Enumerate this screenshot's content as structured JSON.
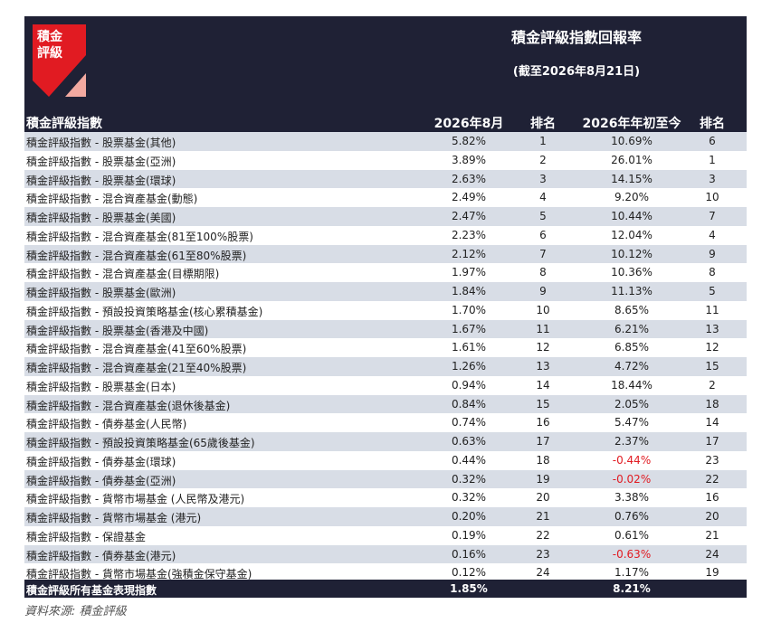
{
  "logo": {
    "line1": "積金",
    "line2": "評級"
  },
  "header": {
    "title": "積金評級指數回報率",
    "subtitle": "(截至2026年8月21日)"
  },
  "columns": {
    "name": "積金評級指數",
    "monthly": "2026年8月",
    "rank1": "排名",
    "ytd": "2026年年初至今",
    "rank2": "排名"
  },
  "colors": {
    "header_bg": "#1f2135",
    "logo_red": "#e11b22",
    "logo_pink": "#f2a9a0",
    "row_alt": "#d8dde6",
    "negative": "#e11b22"
  },
  "rows": [
    {
      "name": "積金評級指數 - 股票基金(其他)",
      "monthly": "5.82%",
      "rank1": "1",
      "ytd": "10.69%",
      "rank2": "6",
      "neg": false
    },
    {
      "name": "積金評級指數 - 股票基金(亞洲)",
      "monthly": "3.89%",
      "rank1": "2",
      "ytd": "26.01%",
      "rank2": "1",
      "neg": false
    },
    {
      "name": "積金評級指數 - 股票基金(環球)",
      "monthly": "2.63%",
      "rank1": "3",
      "ytd": "14.15%",
      "rank2": "3",
      "neg": false
    },
    {
      "name": "積金評級指數 - 混合資產基金(動態)",
      "monthly": "2.49%",
      "rank1": "4",
      "ytd": "9.20%",
      "rank2": "10",
      "neg": false
    },
    {
      "name": "積金評級指數 - 股票基金(美國)",
      "monthly": "2.47%",
      "rank1": "5",
      "ytd": "10.44%",
      "rank2": "7",
      "neg": false
    },
    {
      "name": "積金評級指數 - 混合資產基金(81至100%股票)",
      "monthly": "2.23%",
      "rank1": "6",
      "ytd": "12.04%",
      "rank2": "4",
      "neg": false
    },
    {
      "name": "積金評級指數 - 混合資產基金(61至80%股票)",
      "monthly": "2.12%",
      "rank1": "7",
      "ytd": "10.12%",
      "rank2": "9",
      "neg": false
    },
    {
      "name": "積金評級指數 - 混合資產基金(目標期限)",
      "monthly": "1.97%",
      "rank1": "8",
      "ytd": "10.36%",
      "rank2": "8",
      "neg": false
    },
    {
      "name": "積金評級指數 - 股票基金(歐洲)",
      "monthly": "1.84%",
      "rank1": "9",
      "ytd": "11.13%",
      "rank2": "5",
      "neg": false
    },
    {
      "name": "積金評級指數 - 預設投資策略基金(核心累積基金)",
      "monthly": "1.70%",
      "rank1": "10",
      "ytd": "8.65%",
      "rank2": "11",
      "neg": false
    },
    {
      "name": "積金評級指數 - 股票基金(香港及中國)",
      "monthly": "1.67%",
      "rank1": "11",
      "ytd": "6.21%",
      "rank2": "13",
      "neg": false
    },
    {
      "name": "積金評級指數 - 混合資產基金(41至60%股票)",
      "monthly": "1.61%",
      "rank1": "12",
      "ytd": "6.85%",
      "rank2": "12",
      "neg": false
    },
    {
      "name": "積金評級指數 - 混合資產基金(21至40%股票)",
      "monthly": "1.26%",
      "rank1": "13",
      "ytd": "4.72%",
      "rank2": "15",
      "neg": false
    },
    {
      "name": "積金評級指數 - 股票基金(日本)",
      "monthly": "0.94%",
      "rank1": "14",
      "ytd": "18.44%",
      "rank2": "2",
      "neg": false
    },
    {
      "name": "積金評級指數 - 混合資產基金(退休後基金)",
      "monthly": "0.84%",
      "rank1": "15",
      "ytd": "2.05%",
      "rank2": "18",
      "neg": false
    },
    {
      "name": "積金評級指數 - 債券基金(人民幣)",
      "monthly": "0.74%",
      "rank1": "16",
      "ytd": "5.47%",
      "rank2": "14",
      "neg": false
    },
    {
      "name": "積金評級指數 - 預設投資策略基金(65歲後基金)",
      "monthly": "0.63%",
      "rank1": "17",
      "ytd": "2.37%",
      "rank2": "17",
      "neg": false
    },
    {
      "name": "積金評級指數 - 債券基金(環球)",
      "monthly": "0.44%",
      "rank1": "18",
      "ytd": "-0.44%",
      "rank2": "23",
      "neg": true
    },
    {
      "name": "積金評級指數 - 債券基金(亞洲)",
      "monthly": "0.32%",
      "rank1": "19",
      "ytd": "-0.02%",
      "rank2": "22",
      "neg": true
    },
    {
      "name": "積金評級指數 - 貨幣市場基金 (人民幣及港元)",
      "monthly": "0.32%",
      "rank1": "20",
      "ytd": "3.38%",
      "rank2": "16",
      "neg": false
    },
    {
      "name": "積金評級指數 - 貨幣市場基金 (港元)",
      "monthly": "0.20%",
      "rank1": "21",
      "ytd": "0.76%",
      "rank2": "20",
      "neg": false
    },
    {
      "name": "積金評級指數 - 保證基金",
      "monthly": "0.19%",
      "rank1": "22",
      "ytd": "0.61%",
      "rank2": "21",
      "neg": false
    },
    {
      "name": "積金評級指數 - 債券基金(港元)",
      "monthly": "0.16%",
      "rank1": "23",
      "ytd": "-0.63%",
      "rank2": "24",
      "neg": true
    },
    {
      "name": "積金評級指數 - 貨幣市場基金(強積金保守基金)",
      "monthly": "0.12%",
      "rank1": "24",
      "ytd": "1.17%",
      "rank2": "19",
      "neg": false
    }
  ],
  "total": {
    "name": "積金評級所有基金表現指數",
    "monthly": "1.85%",
    "ytd": "8.21%"
  },
  "source": "資料來源:  積金評級"
}
